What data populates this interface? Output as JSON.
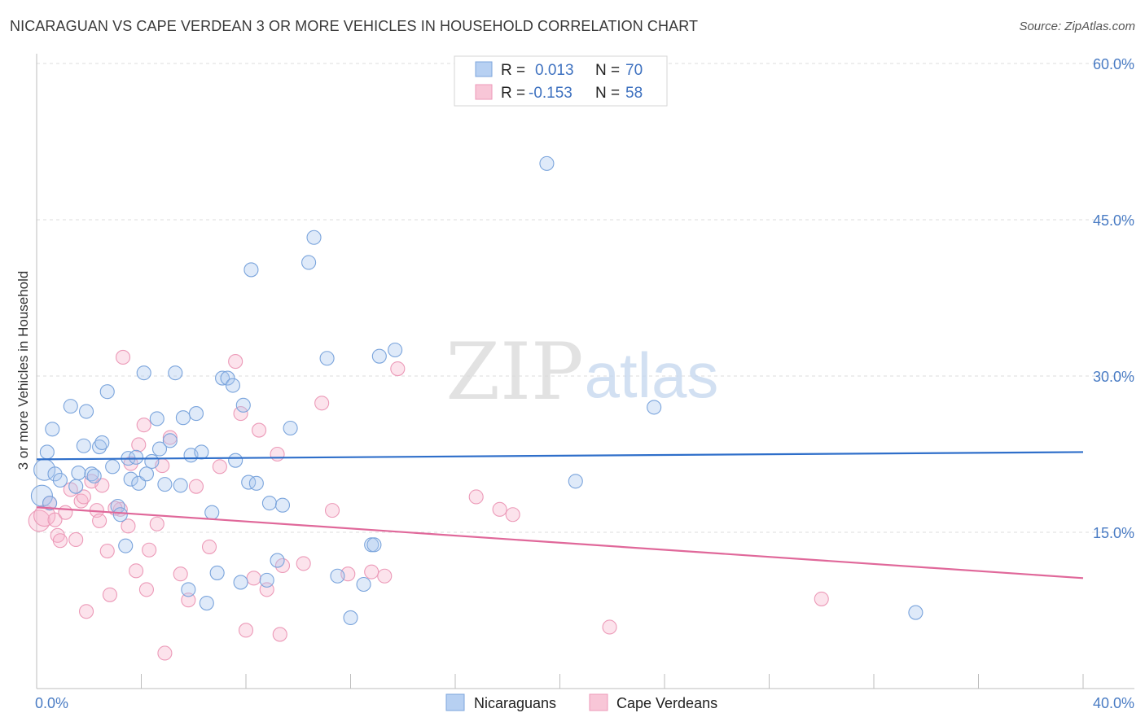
{
  "header": {
    "title": "NICARAGUAN VS CAPE VERDEAN 3 OR MORE VEHICLES IN HOUSEHOLD CORRELATION CHART",
    "source": "Source: ZipAtlas.com"
  },
  "watermark": {
    "zip": "ZIP",
    "atlas": "atlas"
  },
  "legend": {
    "r_label": "R =",
    "n_label": "N =",
    "rows": [
      {
        "r": "0.013",
        "n": "70"
      },
      {
        "r": "-0.153",
        "n": "58"
      }
    ]
  },
  "chart_data": {
    "type": "scatter",
    "title": "NICARAGUAN VS CAPE VERDEAN 3 OR MORE VEHICLES IN HOUSEHOLD CORRELATION CHART",
    "xlabel": "",
    "ylabel": "3 or more Vehicles in Household",
    "xlim": [
      0,
      40
    ],
    "ylim": [
      0,
      60
    ],
    "x_tick_labels": [
      "0.0%",
      "40.0%"
    ],
    "y_ticks": [
      15,
      30,
      45,
      60
    ],
    "y_tick_labels": [
      "15.0%",
      "30.0%",
      "45.0%",
      "60.0%"
    ],
    "grid": true,
    "legend_position": "top-center",
    "colors": {
      "nicaraguans": "#6f9fdc",
      "cape_verdeans": "#ee8fb0",
      "blue_line": "#2f6fca",
      "pink_line": "#e0689a"
    },
    "series": [
      {
        "name": "Nicaraguans",
        "trend": {
          "x": [
            0,
            40
          ],
          "y": [
            22.0,
            22.7
          ]
        },
        "points": [
          [
            0.2,
            18.5
          ],
          [
            0.3,
            21.0
          ],
          [
            0.4,
            22.7
          ],
          [
            0.6,
            24.9
          ],
          [
            0.7,
            20.6
          ],
          [
            0.9,
            20.0
          ],
          [
            1.3,
            27.1
          ],
          [
            1.5,
            19.4
          ],
          [
            1.6,
            20.7
          ],
          [
            1.8,
            23.3
          ],
          [
            1.9,
            26.6
          ],
          [
            2.1,
            20.6
          ],
          [
            2.2,
            20.4
          ],
          [
            2.4,
            23.2
          ],
          [
            2.5,
            23.6
          ],
          [
            2.7,
            28.5
          ],
          [
            2.9,
            21.3
          ],
          [
            3.1,
            17.5
          ],
          [
            3.2,
            16.7
          ],
          [
            3.4,
            13.7
          ],
          [
            3.5,
            22.1
          ],
          [
            3.6,
            20.1
          ],
          [
            3.8,
            22.2
          ],
          [
            3.9,
            19.7
          ],
          [
            4.1,
            30.3
          ],
          [
            4.2,
            20.6
          ],
          [
            4.4,
            21.8
          ],
          [
            4.6,
            25.9
          ],
          [
            4.7,
            23.0
          ],
          [
            4.9,
            19.6
          ],
          [
            5.1,
            23.8
          ],
          [
            5.3,
            30.3
          ],
          [
            5.5,
            19.5
          ],
          [
            5.6,
            26.0
          ],
          [
            5.8,
            9.5
          ],
          [
            5.9,
            22.4
          ],
          [
            6.1,
            26.4
          ],
          [
            6.3,
            22.7
          ],
          [
            6.5,
            8.2
          ],
          [
            6.7,
            16.9
          ],
          [
            6.9,
            11.1
          ],
          [
            7.1,
            29.8
          ],
          [
            7.3,
            29.8
          ],
          [
            7.5,
            29.1
          ],
          [
            7.6,
            21.9
          ],
          [
            7.8,
            10.2
          ],
          [
            7.9,
            27.2
          ],
          [
            8.1,
            19.8
          ],
          [
            8.2,
            40.2
          ],
          [
            8.4,
            19.7
          ],
          [
            8.8,
            10.4
          ],
          [
            8.9,
            17.8
          ],
          [
            9.2,
            12.3
          ],
          [
            9.4,
            17.6
          ],
          [
            9.7,
            25.0
          ],
          [
            10.4,
            40.9
          ],
          [
            10.6,
            43.3
          ],
          [
            11.1,
            31.7
          ],
          [
            11.5,
            10.8
          ],
          [
            12.0,
            6.8
          ],
          [
            12.5,
            10.0
          ],
          [
            12.8,
            13.8
          ],
          [
            12.9,
            13.8
          ],
          [
            13.1,
            31.9
          ],
          [
            13.7,
            32.5
          ],
          [
            19.5,
            50.4
          ],
          [
            20.6,
            19.9
          ],
          [
            23.6,
            27.0
          ],
          [
            33.6,
            7.3
          ],
          [
            0.5,
            17.8
          ]
        ]
      },
      {
        "name": "Cape Verdeans",
        "trend": {
          "x": [
            0,
            40
          ],
          "y": [
            17.4,
            10.6
          ]
        },
        "points": [
          [
            0.1,
            16.1
          ],
          [
            0.3,
            16.6
          ],
          [
            0.5,
            17.8
          ],
          [
            0.7,
            16.2
          ],
          [
            0.8,
            14.7
          ],
          [
            0.9,
            14.2
          ],
          [
            1.1,
            16.9
          ],
          [
            1.3,
            19.1
          ],
          [
            1.5,
            14.3
          ],
          [
            1.7,
            18.0
          ],
          [
            1.8,
            18.4
          ],
          [
            1.9,
            7.4
          ],
          [
            2.1,
            19.9
          ],
          [
            2.3,
            17.1
          ],
          [
            2.4,
            16.1
          ],
          [
            2.5,
            19.5
          ],
          [
            2.7,
            13.2
          ],
          [
            2.8,
            9.0
          ],
          [
            3.2,
            17.2
          ],
          [
            3.3,
            31.8
          ],
          [
            3.5,
            15.6
          ],
          [
            3.6,
            21.6
          ],
          [
            3.8,
            11.3
          ],
          [
            3.9,
            23.4
          ],
          [
            4.1,
            25.3
          ],
          [
            4.2,
            9.5
          ],
          [
            4.3,
            13.3
          ],
          [
            4.6,
            15.8
          ],
          [
            4.8,
            21.4
          ],
          [
            4.9,
            3.4
          ],
          [
            5.1,
            24.1
          ],
          [
            5.5,
            11.0
          ],
          [
            5.8,
            8.5
          ],
          [
            6.1,
            19.4
          ],
          [
            6.6,
            13.6
          ],
          [
            7.6,
            31.4
          ],
          [
            7.8,
            26.4
          ],
          [
            8.0,
            5.6
          ],
          [
            8.3,
            10.6
          ],
          [
            8.5,
            24.8
          ],
          [
            8.8,
            9.5
          ],
          [
            9.2,
            22.5
          ],
          [
            9.3,
            5.2
          ],
          [
            9.4,
            11.8
          ],
          [
            10.2,
            12.0
          ],
          [
            10.9,
            27.4
          ],
          [
            11.3,
            17.1
          ],
          [
            11.9,
            11.0
          ],
          [
            12.8,
            11.2
          ],
          [
            13.3,
            10.8
          ],
          [
            13.8,
            30.7
          ],
          [
            16.8,
            18.4
          ],
          [
            17.7,
            17.2
          ],
          [
            18.2,
            16.7
          ],
          [
            21.9,
            5.9
          ],
          [
            30.0,
            8.6
          ],
          [
            3.0,
            17.3
          ],
          [
            7.0,
            21.3
          ]
        ]
      }
    ]
  },
  "bottom_legend": [
    {
      "label": "Nicaraguans"
    },
    {
      "label": "Cape Verdeans"
    }
  ]
}
